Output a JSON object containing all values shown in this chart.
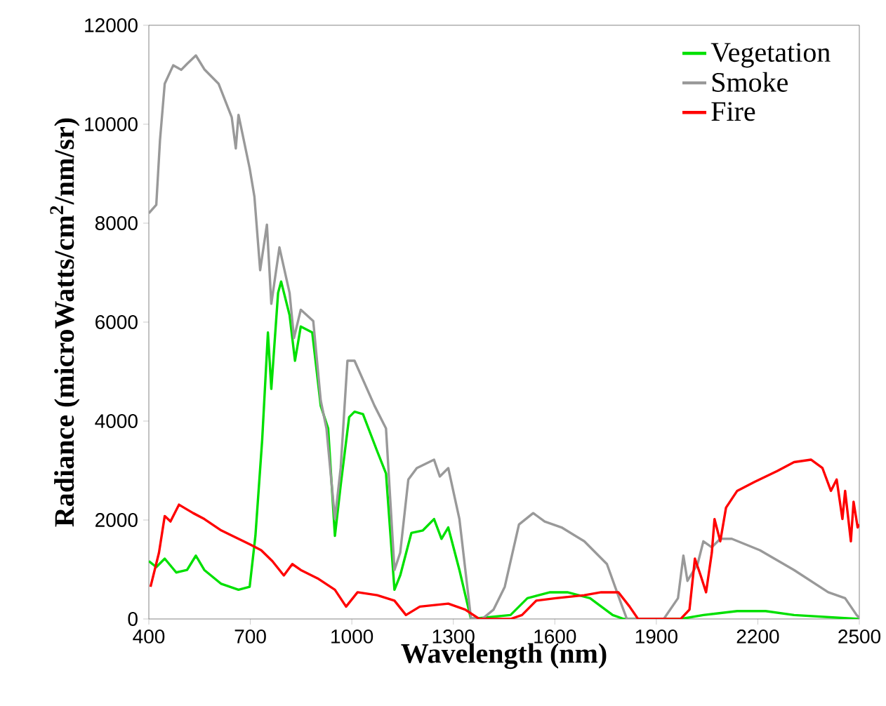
{
  "chart_data": {
    "type": "line",
    "xlabel": "Wavelength (nm)",
    "ylabel": "Radiance (microWatts/cm$^{2}$/nm/sr)",
    "xlim": [
      400,
      2500
    ],
    "xticks": [
      400,
      700,
      1000,
      1300,
      1600,
      1900,
      2200,
      2500
    ],
    "ylim": [
      0,
      12000
    ],
    "yticks": [
      0,
      2000,
      4000,
      6000,
      8000,
      10000,
      12000
    ],
    "legend": "top right",
    "marker": "none",
    "line_style": "solid",
    "series": [
      {
        "name": "Vegetation",
        "color": "#00e000",
        "x": [
          400,
          422,
          447,
          481,
          513,
          539,
          564,
          614,
          665,
          698,
          715,
          735,
          752,
          762,
          782,
          791,
          816,
          832,
          849,
          883,
          908,
          930,
          950,
          967,
          992,
          1008,
          1033,
          1075,
          1101,
          1126,
          1143,
          1176,
          1210,
          1243,
          1265,
          1285,
          1318,
          1352,
          1469,
          1519,
          1586,
          1637,
          1704,
          1771,
          1804,
          1972,
          2039,
          2139,
          2223,
          2307,
          2500
        ],
        "values": [
          1170,
          1050,
          1220,
          940,
          990,
          1280,
          990,
          710,
          590,
          650,
          1680,
          3620,
          5790,
          4650,
          6590,
          6820,
          6140,
          5220,
          5910,
          5790,
          4310,
          3850,
          1680,
          2700,
          4080,
          4190,
          4140,
          3390,
          2940,
          590,
          880,
          1740,
          1790,
          2020,
          1620,
          1850,
          990,
          0,
          80,
          420,
          540,
          540,
          420,
          80,
          0,
          0,
          80,
          160,
          160,
          80,
          0
        ]
      },
      {
        "name": "Smoke",
        "color": "#999999",
        "x": [
          400,
          422,
          433,
          447,
          472,
          496,
          513,
          539,
          564,
          606,
          645,
          657,
          665,
          698,
          712,
          729,
          749,
          762,
          786,
          816,
          829,
          849,
          886,
          908,
          925,
          950,
          967,
          987,
          1008,
          1067,
          1101,
          1126,
          1143,
          1167,
          1192,
          1243,
          1260,
          1285,
          1318,
          1352,
          1385,
          1419,
          1452,
          1494,
          1536,
          1570,
          1620,
          1687,
          1754,
          1796,
          1813,
          1922,
          1964,
          1980,
          1992,
          2022,
          2039,
          2064,
          2089,
          2123,
          2206,
          2307,
          2408,
          2458,
          2492,
          2500
        ],
        "values": [
          8200,
          8370,
          9680,
          10820,
          11190,
          11100,
          11220,
          11390,
          11110,
          10820,
          10140,
          9510,
          10190,
          9110,
          8540,
          7050,
          7970,
          6370,
          7510,
          6590,
          5680,
          6250,
          6020,
          4420,
          3850,
          2020,
          3050,
          5220,
          5220,
          4310,
          3850,
          990,
          1340,
          2820,
          3050,
          3220,
          2880,
          3050,
          2020,
          20,
          0,
          190,
          650,
          1910,
          2140,
          1970,
          1850,
          1570,
          1110,
          310,
          0,
          0,
          420,
          1280,
          770,
          1110,
          1570,
          1450,
          1620,
          1620,
          1390,
          990,
          540,
          420,
          80,
          20
        ]
      },
      {
        "name": "Fire",
        "color": "#ff0000",
        "x": [
          405,
          430,
          447,
          464,
          489,
          531,
          564,
          614,
          665,
          698,
          732,
          765,
          799,
          824,
          849,
          899,
          950,
          983,
          1017,
          1075,
          1126,
          1160,
          1201,
          1285,
          1335,
          1377,
          1469,
          1503,
          1545,
          1603,
          1687,
          1737,
          1788,
          1821,
          1846,
          1972,
          1998,
          2014,
          2031,
          2047,
          2064,
          2072,
          2089,
          2106,
          2139,
          2190,
          2257,
          2307,
          2357,
          2391,
          2416,
          2433,
          2450,
          2458,
          2475,
          2483,
          2495,
          2500
        ],
        "values": [
          650,
          1340,
          2080,
          1970,
          2310,
          2140,
          2020,
          1790,
          1620,
          1510,
          1390,
          1170,
          880,
          1110,
          990,
          820,
          590,
          250,
          540,
          480,
          370,
          80,
          250,
          310,
          190,
          0,
          0,
          80,
          370,
          420,
          480,
          540,
          540,
          250,
          0,
          0,
          190,
          1220,
          880,
          540,
          1340,
          2020,
          1570,
          2250,
          2590,
          2770,
          2990,
          3170,
          3220,
          3050,
          2590,
          2820,
          2020,
          2590,
          1570,
          2370,
          1850,
          1910
        ]
      }
    ]
  }
}
